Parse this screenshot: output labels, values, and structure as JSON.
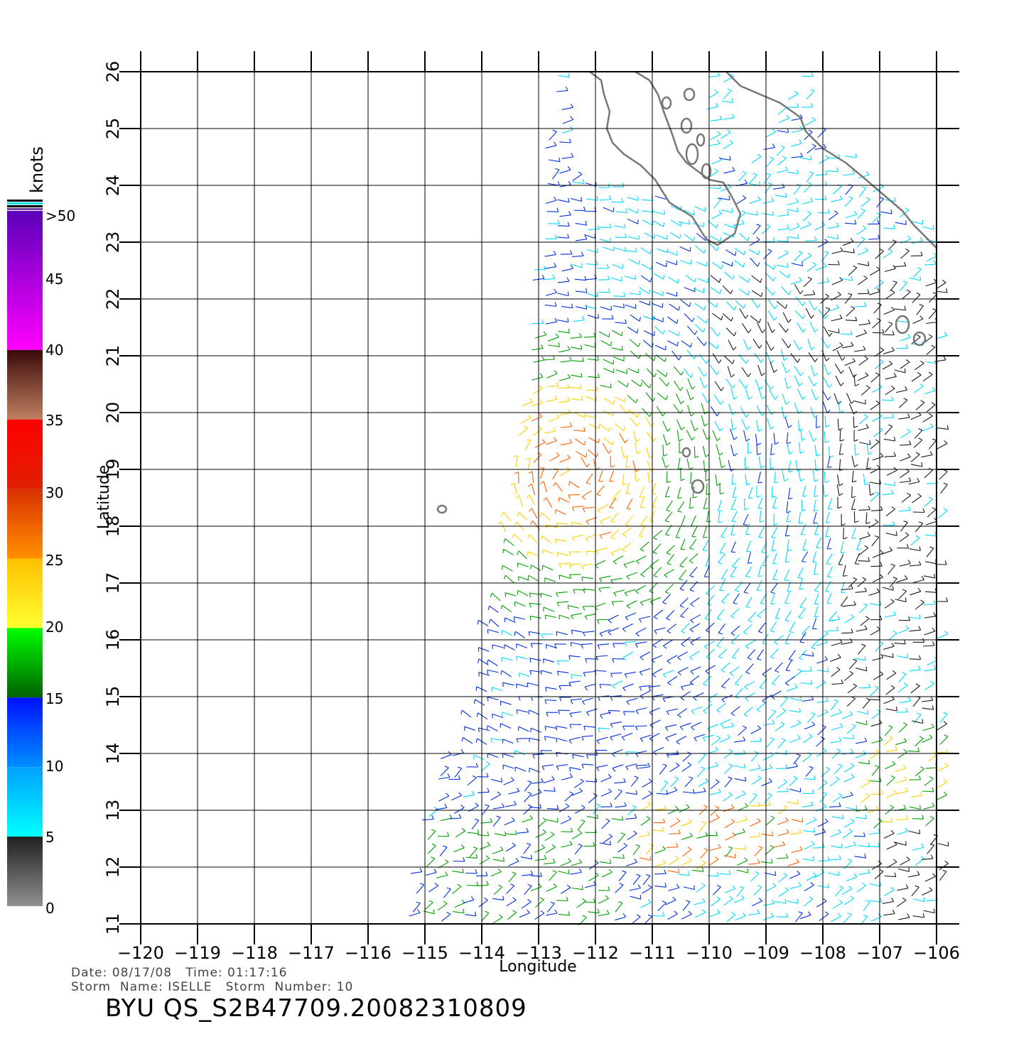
{
  "colorbar": {
    "title": "knots",
    "labels": [
      ">50",
      "45",
      "40",
      "35",
      "30",
      "25",
      "20",
      "15",
      "10",
      "5",
      "0"
    ],
    "bands": [
      {
        "from": 50,
        "to": 40,
        "top": "#5a00b8",
        "bottom": "#ff00ff"
      },
      {
        "from": 40,
        "to": 35,
        "top": "#3a0a0a",
        "bottom": "#c08060"
      },
      {
        "from": 35,
        "to": 30,
        "top": "#ff0000",
        "bottom": "#e02000"
      },
      {
        "from": 30,
        "to": 25,
        "top": "#d83000",
        "bottom": "#ff9000"
      },
      {
        "from": 25,
        "to": 20,
        "top": "#ffc000",
        "bottom": "#ffff30"
      },
      {
        "from": 20,
        "to": 15,
        "top": "#00ff00",
        "bottom": "#006000"
      },
      {
        "from": 15,
        "to": 10,
        "top": "#0010ff",
        "bottom": "#0090ff"
      },
      {
        "from": 10,
        "to": 5,
        "top": "#00a0ff",
        "bottom": "#00ffff"
      },
      {
        "from": 5,
        "to": 0,
        "top": "#202020",
        "bottom": "#909090"
      }
    ]
  },
  "axes": {
    "xlabel": "Longitude",
    "ylabel": "Latitude",
    "x_ticks": [
      "−120",
      "−119",
      "−118",
      "−117",
      "−116",
      "−115",
      "−114",
      "−113",
      "−112",
      "−111",
      "−110",
      "−109",
      "−108",
      "−107",
      "−106"
    ],
    "y_ticks": [
      "11",
      "12",
      "13",
      "14",
      "15",
      "16",
      "17",
      "18",
      "19",
      "20",
      "21",
      "22",
      "23",
      "24",
      "25",
      "26"
    ],
    "lon_range": [
      -120,
      -106
    ],
    "lat_range": [
      11,
      26
    ],
    "grid": true
  },
  "storm": {
    "center_lon": -112.4,
    "center_lat": 18.9
  },
  "wind_colors": {
    "calm": "#1a1a1a",
    "light": "#00d8ff",
    "moderate": "#0030e0",
    "fresh": "#00a000",
    "strong": "#ffd000",
    "gale": "#ff6000"
  },
  "coast_color": "#777777",
  "info": {
    "line1": "Date: 08/17/08   Time: 01:17:16",
    "line2": "Storm  Name: ISELLE   Storm  Number: 10",
    "title": "BYU  QS_S2B47709.20082310809"
  }
}
